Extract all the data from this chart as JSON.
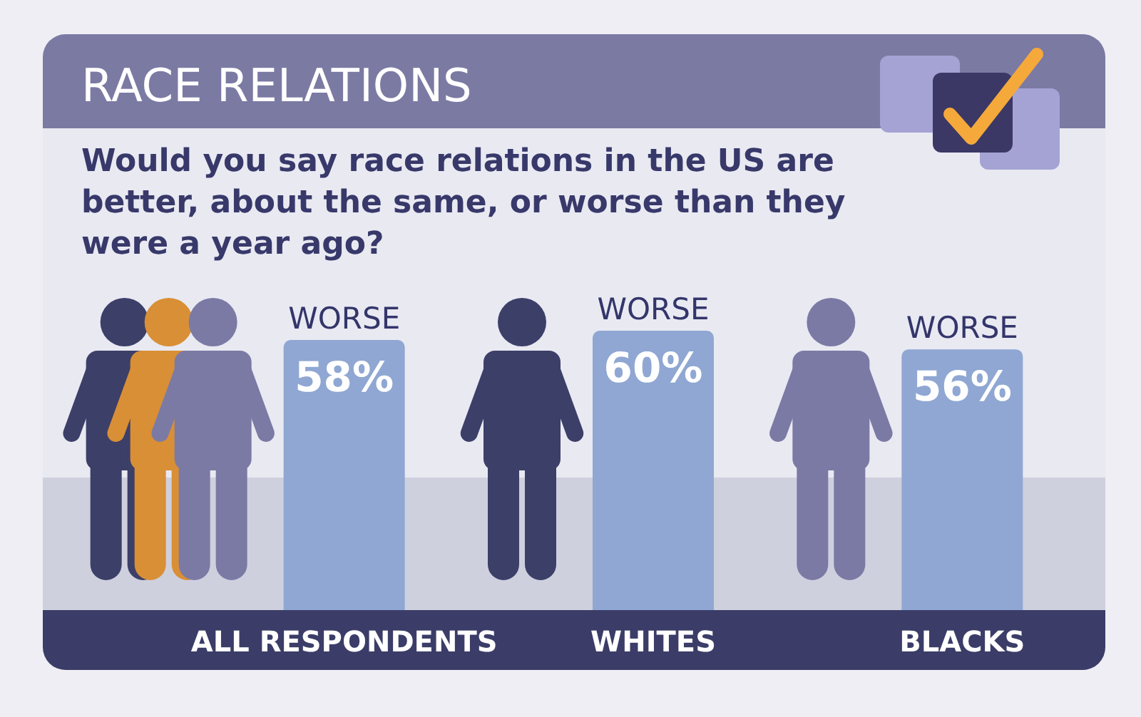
{
  "chart_data": {
    "type": "bar",
    "title": "RACE RELATIONS",
    "subtitle": "Would you say race relations in the US are better, about the same, or worse than they were a year ago?",
    "categories": [
      "ALL RESPONDENTS",
      "WHITES",
      "BLACKS"
    ],
    "series": [
      {
        "name": "WORSE",
        "color": "#8fa7d2",
        "values": [
          58,
          60,
          56
        ],
        "value_labels": [
          "58%",
          "60%",
          "56%"
        ]
      }
    ],
    "tick_labels": "x"
  }
}
